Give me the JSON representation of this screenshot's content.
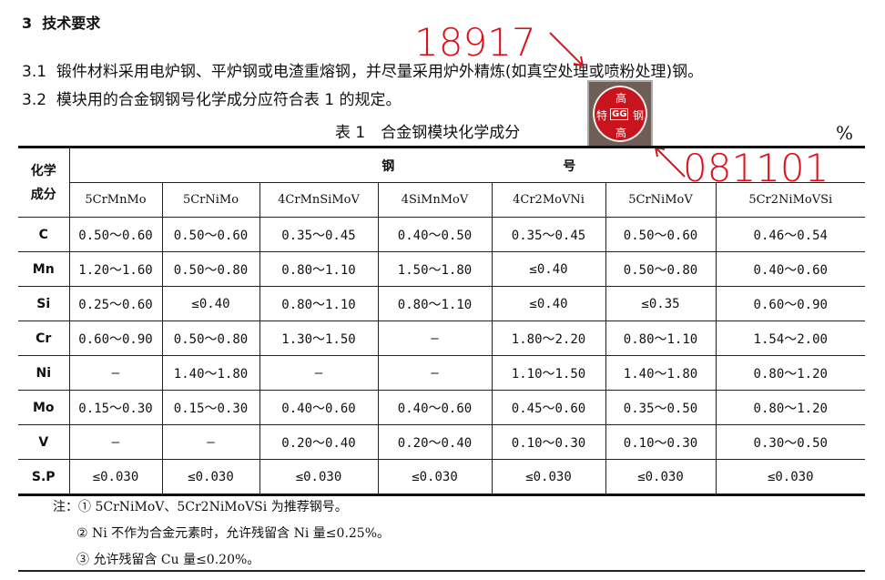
{
  "section": {
    "num": "3",
    "title": "技术要求"
  },
  "clauses": [
    {
      "num": "3.1",
      "text": "锻件材料采用电炉钢、平炉钢或电渣重熔钢，并尽量采用炉外精炼(如真空处理或喷粉处理)钢。"
    },
    {
      "num": "3.2",
      "text": "模块用的合金钢钢号化学成分应符合表 1 的规定。"
    }
  ],
  "table": {
    "caption": "表 1　合金钢模块化学成分",
    "unit": "%",
    "row_header": "化学成分",
    "group_header_1": "钢",
    "group_header_2": "号",
    "columns": [
      "5CrMnMo",
      "5CrNiMo",
      "4CrMnSiMoV",
      "4SiMnMoV",
      "4Cr2MoVNi",
      "5CrNiMoV",
      "5Cr2NiMoVSi"
    ],
    "rows": [
      {
        "element": "C",
        "values": [
          "0.50～0.60",
          "0.50～0.60",
          "0.35～0.45",
          "0.40～0.50",
          "0.35～0.45",
          "0.50～0.60",
          "0.46～0.54"
        ]
      },
      {
        "element": "Mn",
        "values": [
          "1.20～1.60",
          "0.50～0.80",
          "0.80～1.10",
          "1.50～1.80",
          "≤0.40",
          "0.50～0.80",
          "0.40～0.60"
        ]
      },
      {
        "element": "Si",
        "values": [
          "0.25～0.60",
          "≤0.40",
          "0.80～1.10",
          "0.80～1.10",
          "≤0.40",
          "≤0.35",
          "0.60～0.90"
        ]
      },
      {
        "element": "Cr",
        "values": [
          "0.60～0.90",
          "0.50～0.80",
          "1.30～1.50",
          "—",
          "1.80～2.20",
          "0.80～1.10",
          "1.54～2.00"
        ]
      },
      {
        "element": "Ni",
        "values": [
          "—",
          "1.40～1.80",
          "—",
          "—",
          "1.10～1.50",
          "1.40～1.80",
          "0.80～1.20"
        ]
      },
      {
        "element": "Mo",
        "values": [
          "0.15～0.30",
          "0.15～0.30",
          "0.40～0.60",
          "0.40～0.60",
          "0.45～0.60",
          "0.35～0.50",
          "0.80～1.20"
        ]
      },
      {
        "element": "V",
        "values": [
          "—",
          "—",
          "0.20～0.40",
          "0.20～0.40",
          "0.10～0.30",
          "0.10～0.30",
          "0.30～0.50"
        ]
      },
      {
        "element": "S.P",
        "values": [
          "≤0.030",
          "≤0.030",
          "≤0.030",
          "≤0.030",
          "≤0.030",
          "≤0.030",
          "≤0.030"
        ]
      }
    ]
  },
  "notes": {
    "label": "注：",
    "items": [
      "① 5CrNiMoV、5Cr2NiMoVSi 为推荐钢号。",
      "② Ni 不作为合金元素时，允许残留含 Ni 量≤0.25%。",
      "③ 允许残留含 Cu 量≤0.20%。"
    ]
  },
  "annotations": {
    "top": "18917",
    "bottom": "081101",
    "color": "#e0101a"
  },
  "stamp": {
    "top": "高",
    "left": "特",
    "center": "GG",
    "right": "钢",
    "bottom": "高"
  }
}
